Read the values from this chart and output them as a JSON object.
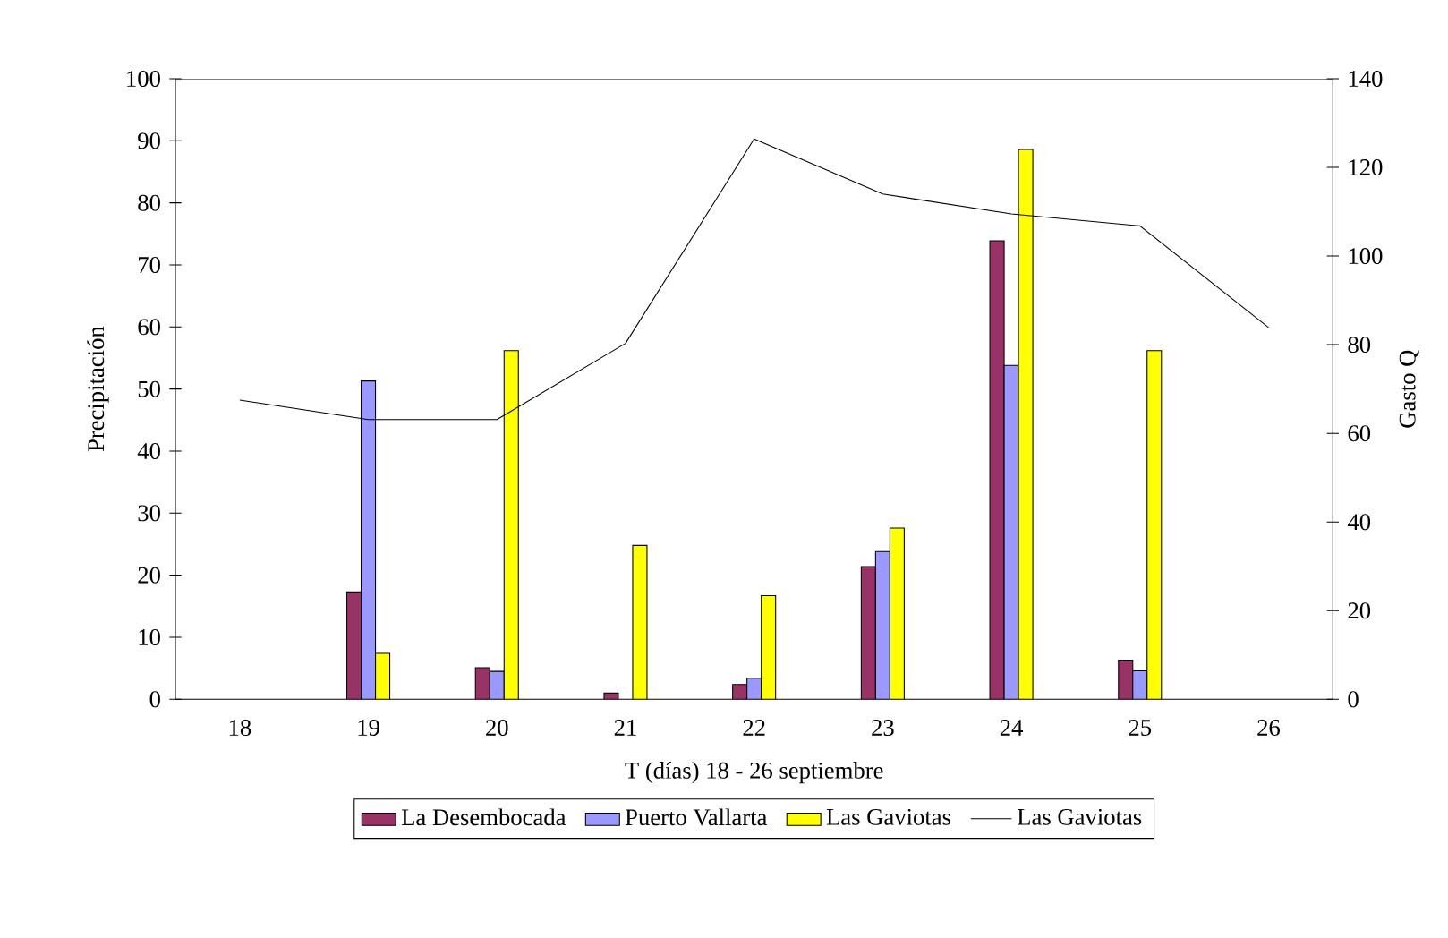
{
  "chart_data": {
    "type": "bar",
    "xlabel": "T (días) 18 - 26 septiembre",
    "ylabel": "Precipitación",
    "y2label": "Gasto Q",
    "categories": [
      "18",
      "19",
      "20",
      "21",
      "22",
      "23",
      "24",
      "25",
      "26"
    ],
    "series": [
      {
        "name": "La Desembocada",
        "color": "#993366",
        "values": [
          null,
          17.3,
          5.1,
          1.0,
          2.4,
          21.4,
          73.9,
          6.3,
          null
        ]
      },
      {
        "name": "Puerto Vallarta",
        "color": "#9999ff",
        "values": [
          null,
          51.3,
          4.5,
          null,
          3.4,
          23.8,
          53.8,
          4.6,
          null
        ]
      },
      {
        "name": "Las Gaviotas",
        "color": "#ffff00",
        "values": [
          null,
          7.4,
          56.2,
          24.8,
          16.7,
          27.6,
          88.6,
          56.2,
          null
        ]
      },
      {
        "name": "Las Gaviotas",
        "color": "#000000",
        "type": "line",
        "axis": "y2",
        "values": [
          67.5,
          63.1,
          63.1,
          80.3,
          126.4,
          114.0,
          109.5,
          106.8,
          83.9
        ]
      }
    ],
    "ylim": [
      0,
      100
    ],
    "yticks": [
      0,
      10,
      20,
      30,
      40,
      50,
      60,
      70,
      80,
      90,
      100
    ],
    "y2lim": [
      0,
      140
    ],
    "y2ticks": [
      0,
      20,
      40,
      60,
      80,
      100,
      120,
      140
    ],
    "legend": "bottom"
  }
}
